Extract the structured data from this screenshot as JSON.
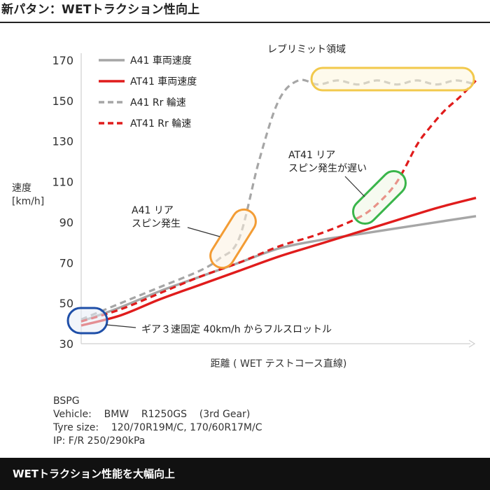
{
  "header": {
    "title": "新パタン：WETトラクション性向上"
  },
  "chart_data": {
    "type": "line",
    "ylabel": "速度\n[km/h]",
    "xlabel": "距離 ( WET テストコース直線)",
    "ylim": [
      30,
      170
    ],
    "yticks": [
      30,
      50,
      70,
      90,
      110,
      130,
      150,
      170
    ],
    "xlim": [
      0,
      100
    ],
    "x_ticks_shown": false,
    "grid": false,
    "legend_position": "top-left",
    "series": [
      {
        "name": "A41 車両速度",
        "color": "#a6a6a6",
        "style": "solid",
        "x": [
          0,
          10,
          20,
          30,
          40,
          50,
          60,
          70,
          80,
          90,
          100
        ],
        "y": [
          41,
          48,
          56,
          63,
          70,
          77,
          81,
          84,
          87,
          90,
          93
        ]
      },
      {
        "name": "AT41 車両速度",
        "color": "#e01c1c",
        "style": "solid",
        "x": [
          0,
          10,
          20,
          30,
          40,
          50,
          60,
          70,
          80,
          90,
          100
        ],
        "y": [
          39,
          44,
          52,
          59,
          66,
          73,
          79,
          85,
          91,
          97,
          102
        ]
      },
      {
        "name": "A41  Rr 輪速",
        "color": "#a6a6a6",
        "style": "dashed",
        "x": [
          0,
          10,
          20,
          30,
          35,
          40,
          45,
          50,
          55,
          60,
          65,
          70,
          75,
          80,
          85,
          90,
          95,
          100
        ],
        "y": [
          42,
          50,
          58,
          66,
          72,
          82,
          120,
          150,
          160,
          158,
          160,
          158,
          160,
          158,
          160,
          158,
          160,
          158
        ]
      },
      {
        "name": "AT41  Rr 輪速",
        "color": "#e01c1c",
        "style": "dashed",
        "x": [
          0,
          10,
          20,
          30,
          40,
          50,
          60,
          70,
          75,
          80,
          85,
          88,
          92,
          96,
          100
        ],
        "y": [
          41,
          47,
          55,
          63,
          70,
          78,
          84,
          92,
          99,
          110,
          128,
          136,
          145,
          152,
          160
        ]
      }
    ],
    "annotations": [
      {
        "label": "レブリミット領域",
        "color": "#f2c94c"
      },
      {
        "label": "AT41 リア\nスピン発生が遅い",
        "color": "#39b54a"
      },
      {
        "label": "A41 リア\nスピン発生",
        "color": "#f39c34"
      },
      {
        "label": "ギア３速固定  40km/h からフルスロットル",
        "color": "#1f4fa8"
      }
    ]
  },
  "notes": {
    "lines": [
      "BSPG",
      "Vehicle:    BMW    R1250GS    (3rd Gear)",
      "Tyre size:    120/70R19M/C, 170/60R17M/C",
      "IP: F/R 250/290kPa"
    ]
  },
  "footer": {
    "text": "WETトラクション性能を大幅向上"
  }
}
